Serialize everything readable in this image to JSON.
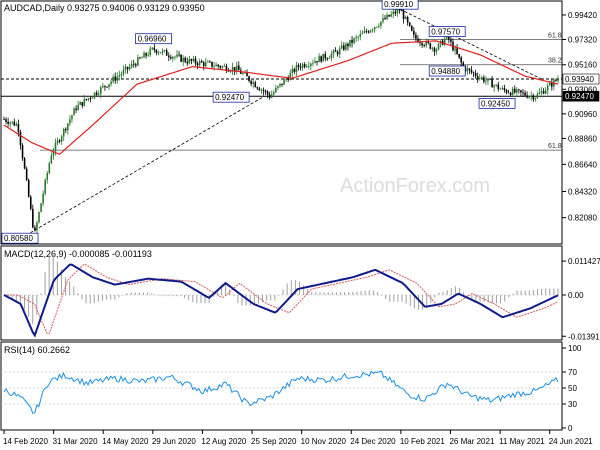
{
  "title_line": "AUDCAD,Daily  0.93275 0.94006 0.93129 0.93950",
  "watermark": "ActionForex.com",
  "colors": {
    "frame": "#000000",
    "candle_up": "#2a7a2a",
    "candle_down": "#000000",
    "ma": "#e01f1f",
    "macd": "#101a8a",
    "signal": "#d65a5a",
    "histogram": "#a0a0a0",
    "rsi": "#1e90e0",
    "grid": "#c8c8c8",
    "label_border": "#1a2a9a",
    "current_price_bg": "#000000"
  },
  "chart_data": [
    {
      "type": "line",
      "name": "price-panel",
      "y_min": 0.8,
      "y_max": 0.995,
      "price_ticks": [
        "0.99420",
        "0.97320",
        "0.95160",
        "0.93060",
        "0.90960",
        "0.88860",
        "0.86640",
        "0.84320",
        "0.82080"
      ],
      "x_tick_labels": [
        "14 Feb 2020",
        "31 Mar 2020",
        "14 May 2020",
        "29 Jun 2020",
        "12 Aug 2020",
        "25 Sep 2020",
        "10 Nov 2020",
        "24 Dec 2020",
        "10 Feb 2021",
        "26 Mar 2021",
        "11 May 2021",
        "24 Jun 2021"
      ],
      "key_points": [
        {
          "x": 0,
          "y": 0.905
        },
        {
          "x": 0.025,
          "y": 0.9
        },
        {
          "x": 0.055,
          "y": 0.8058
        },
        {
          "x": 0.085,
          "y": 0.875
        },
        {
          "x": 0.13,
          "y": 0.915
        },
        {
          "x": 0.2,
          "y": 0.94
        },
        {
          "x": 0.27,
          "y": 0.965
        },
        {
          "x": 0.33,
          "y": 0.955
        },
        {
          "x": 0.42,
          "y": 0.9479
        },
        {
          "x": 0.48,
          "y": 0.9247
        },
        {
          "x": 0.53,
          "y": 0.95
        },
        {
          "x": 0.6,
          "y": 0.962
        },
        {
          "x": 0.66,
          "y": 0.982
        },
        {
          "x": 0.715,
          "y": 0.9991
        },
        {
          "x": 0.74,
          "y": 0.975
        },
        {
          "x": 0.78,
          "y": 0.965
        },
        {
          "x": 0.8,
          "y": 0.9757
        },
        {
          "x": 0.83,
          "y": 0.9488
        },
        {
          "x": 0.9,
          "y": 0.93
        },
        {
          "x": 0.96,
          "y": 0.9245
        },
        {
          "x": 1,
          "y": 0.9395
        }
      ],
      "ma_points": [
        {
          "x": 0,
          "y": 0.9
        },
        {
          "x": 0.05,
          "y": 0.885
        },
        {
          "x": 0.1,
          "y": 0.875
        },
        {
          "x": 0.16,
          "y": 0.9
        },
        {
          "x": 0.24,
          "y": 0.935
        },
        {
          "x": 0.34,
          "y": 0.95
        },
        {
          "x": 0.44,
          "y": 0.945
        },
        {
          "x": 0.52,
          "y": 0.94
        },
        {
          "x": 0.62,
          "y": 0.955
        },
        {
          "x": 0.7,
          "y": 0.97
        },
        {
          "x": 0.78,
          "y": 0.972
        },
        {
          "x": 0.86,
          "y": 0.96
        },
        {
          "x": 0.94,
          "y": 0.942
        },
        {
          "x": 1,
          "y": 0.935
        }
      ],
      "annotations": [
        {
          "label": "0.99910",
          "x": 0.715,
          "y": 0.9991
        },
        {
          "label": "0.96960",
          "x": 0.27,
          "y": 0.9696
        },
        {
          "label": "0.97570",
          "x": 0.8,
          "y": 0.9757
        },
        {
          "label": "0.94880",
          "x": 0.8,
          "y": 0.9488
        },
        {
          "label": "0.92470",
          "x": 0.41,
          "y": 0.9247
        },
        {
          "label": "0.92450",
          "x": 0.89,
          "y": 0.9245
        },
        {
          "label": "0.80580",
          "x": 0.005,
          "y": 0.8058
        }
      ],
      "fib_levels": [
        {
          "label": "61.8",
          "y": 0.9732
        },
        {
          "label": "38.2",
          "y": 0.9516
        },
        {
          "label": "61.8",
          "y": 0.8786
        }
      ],
      "horizontal_levels": [
        {
          "label": "0.93940",
          "y": 0.9394,
          "style": "dashed"
        },
        {
          "label": "0.92470",
          "y": 0.9247,
          "style": "solid"
        }
      ],
      "current_price": "0.93940"
    },
    {
      "type": "line",
      "name": "MACD(12,26,9)",
      "header": "MACD(12,26,9) -0.000085 -0.001193",
      "y_ticks": [
        "0.011427",
        "0.00",
        "-0.01391"
      ],
      "y_min": -0.0145,
      "y_max": 0.0118,
      "macd_points": [
        {
          "x": 0,
          "y": 0.0
        },
        {
          "x": 0.03,
          "y": -0.003
        },
        {
          "x": 0.055,
          "y": -0.0139
        },
        {
          "x": 0.09,
          "y": 0.005
        },
        {
          "x": 0.12,
          "y": 0.0105
        },
        {
          "x": 0.16,
          "y": 0.006
        },
        {
          "x": 0.2,
          "y": 0.0035
        },
        {
          "x": 0.26,
          "y": 0.0055
        },
        {
          "x": 0.32,
          "y": 0.0045
        },
        {
          "x": 0.37,
          "y": -0.001
        },
        {
          "x": 0.4,
          "y": 0.004
        },
        {
          "x": 0.45,
          "y": -0.003
        },
        {
          "x": 0.49,
          "y": -0.006
        },
        {
          "x": 0.53,
          "y": 0.002
        },
        {
          "x": 0.58,
          "y": 0.004
        },
        {
          "x": 0.63,
          "y": 0.006
        },
        {
          "x": 0.67,
          "y": 0.0085
        },
        {
          "x": 0.72,
          "y": 0.004
        },
        {
          "x": 0.76,
          "y": -0.004
        },
        {
          "x": 0.79,
          "y": -0.003
        },
        {
          "x": 0.82,
          "y": 0.0005
        },
        {
          "x": 0.86,
          "y": -0.003
        },
        {
          "x": 0.9,
          "y": -0.0075
        },
        {
          "x": 0.95,
          "y": -0.0045
        },
        {
          "x": 1,
          "y": -0.0001
        }
      ]
    },
    {
      "type": "line",
      "name": "RSI(14)",
      "header": "RSI(14) 60.2662",
      "y_ticks": [
        "100",
        "70",
        "50",
        "30",
        "0"
      ],
      "y_min": 0,
      "y_max": 100,
      "rsi_points": [
        {
          "x": 0,
          "y": 48
        },
        {
          "x": 0.03,
          "y": 38
        },
        {
          "x": 0.055,
          "y": 18
        },
        {
          "x": 0.08,
          "y": 58
        },
        {
          "x": 0.11,
          "y": 66
        },
        {
          "x": 0.15,
          "y": 56
        },
        {
          "x": 0.2,
          "y": 62
        },
        {
          "x": 0.25,
          "y": 58
        },
        {
          "x": 0.3,
          "y": 64
        },
        {
          "x": 0.36,
          "y": 46
        },
        {
          "x": 0.4,
          "y": 55
        },
        {
          "x": 0.44,
          "y": 30
        },
        {
          "x": 0.48,
          "y": 38
        },
        {
          "x": 0.53,
          "y": 62
        },
        {
          "x": 0.58,
          "y": 60
        },
        {
          "x": 0.63,
          "y": 66
        },
        {
          "x": 0.68,
          "y": 68
        },
        {
          "x": 0.73,
          "y": 42
        },
        {
          "x": 0.76,
          "y": 36
        },
        {
          "x": 0.8,
          "y": 56
        },
        {
          "x": 0.84,
          "y": 40
        },
        {
          "x": 0.88,
          "y": 34
        },
        {
          "x": 0.92,
          "y": 42
        },
        {
          "x": 0.96,
          "y": 46
        },
        {
          "x": 1,
          "y": 60.27
        }
      ]
    }
  ]
}
